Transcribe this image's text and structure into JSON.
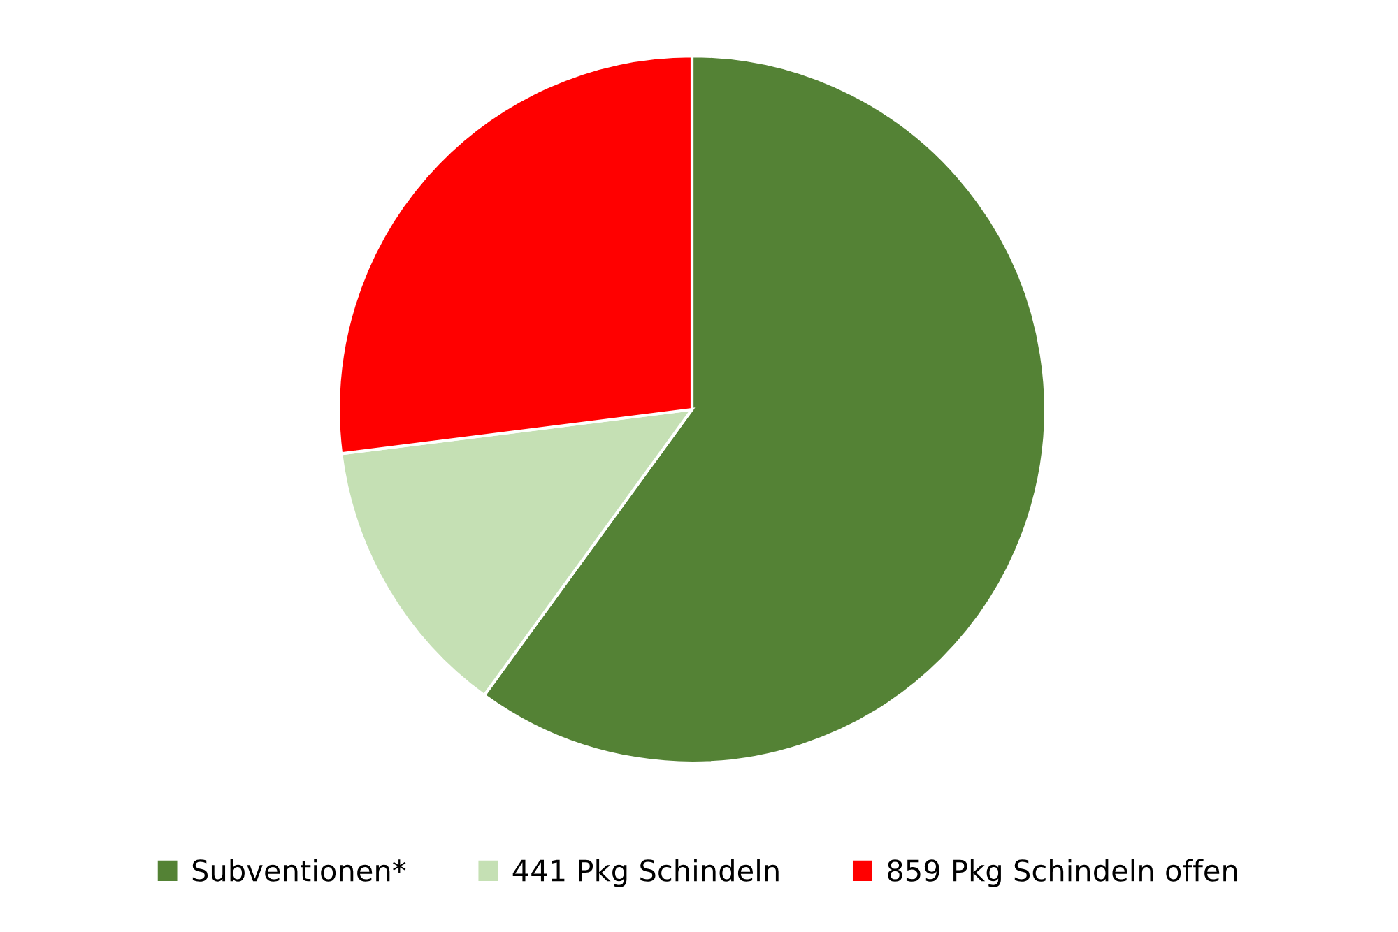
{
  "chart_data": {
    "type": "pie",
    "categories": [
      "Subventionen*",
      "441 Pkg Schindeln",
      "859 Pkg Schindeln offen"
    ],
    "values": [
      60,
      13,
      27
    ],
    "colors": [
      "#548235",
      "#c5e0b4",
      "#ff0000"
    ],
    "legend": "bottom"
  }
}
